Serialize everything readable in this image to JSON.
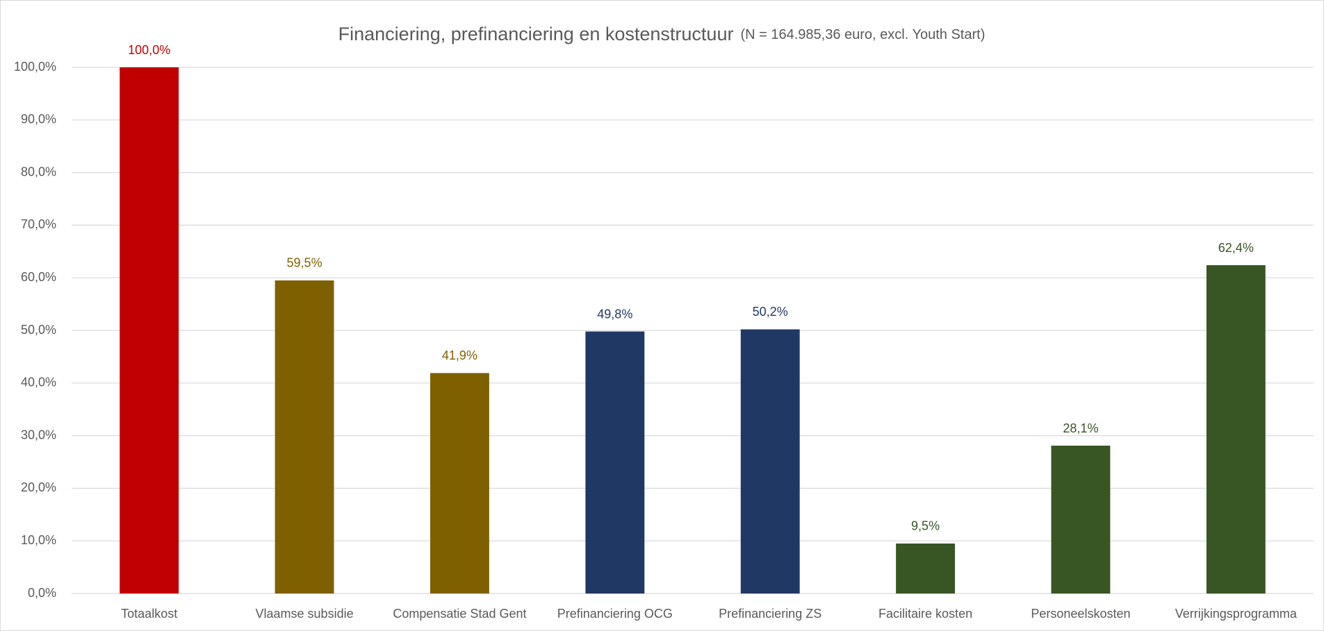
{
  "chart_data": {
    "type": "bar",
    "title": "Financiering, prefinanciering en kostenstructuur",
    "subtitle": "(N = 164.985,36 euro, excl. Youth Start)",
    "categories": [
      "Totaalkost",
      "Vlaamse subsidie",
      "Compensatie Stad Gent",
      "Prefinanciering OCG",
      "Prefinanciering ZS",
      "Facilitaire kosten",
      "Personeelskosten",
      "Verrijkingsprogramma"
    ],
    "values": [
      100.0,
      59.5,
      41.9,
      49.8,
      50.2,
      9.5,
      28.1,
      62.4
    ],
    "value_labels": [
      "100,0%",
      "59,5%",
      "41,9%",
      "49,8%",
      "50,2%",
      "9,5%",
      "28,1%",
      "62,4%"
    ],
    "colors": [
      "#c00000",
      "#7f6000",
      "#7f6000",
      "#203864",
      "#203864",
      "#375623",
      "#375623",
      "#375623"
    ],
    "ylim": [
      0,
      100
    ],
    "yticks": [
      {
        "value": 0,
        "label": "0,0%"
      },
      {
        "value": 10,
        "label": "10,0%"
      },
      {
        "value": 20,
        "label": "20,0%"
      },
      {
        "value": 30,
        "label": "30,0%"
      },
      {
        "value": 40,
        "label": "40,0%"
      },
      {
        "value": 50,
        "label": "50,0%"
      },
      {
        "value": 60,
        "label": "60,0%"
      },
      {
        "value": 70,
        "label": "70,0%"
      },
      {
        "value": 80,
        "label": "80,0%"
      },
      {
        "value": 90,
        "label": "90,0%"
      },
      {
        "value": 100,
        "label": "100,0%"
      }
    ],
    "grid": true
  }
}
